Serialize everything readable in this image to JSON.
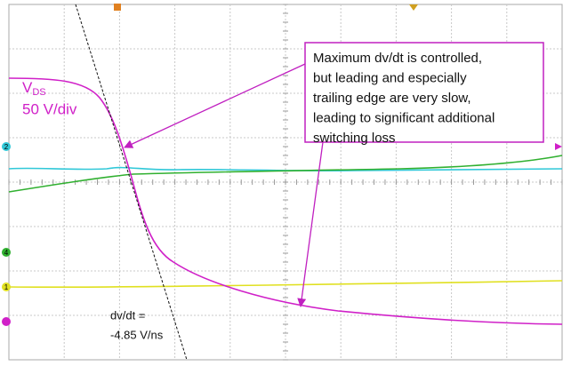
{
  "scope": {
    "trace_label": {
      "main": "V",
      "subscript": "DS"
    },
    "scale": "50 V/div",
    "annotation": [
      "Maximum dv/dt is controlled,",
      "but leading and especially",
      "trailing edge are very slow,",
      "leading to significant additional",
      "switching loss"
    ],
    "slope": [
      "dv/dt =",
      "-4.85 V/ns"
    ],
    "channel_markers": [
      "2",
      "4",
      "1"
    ]
  }
}
